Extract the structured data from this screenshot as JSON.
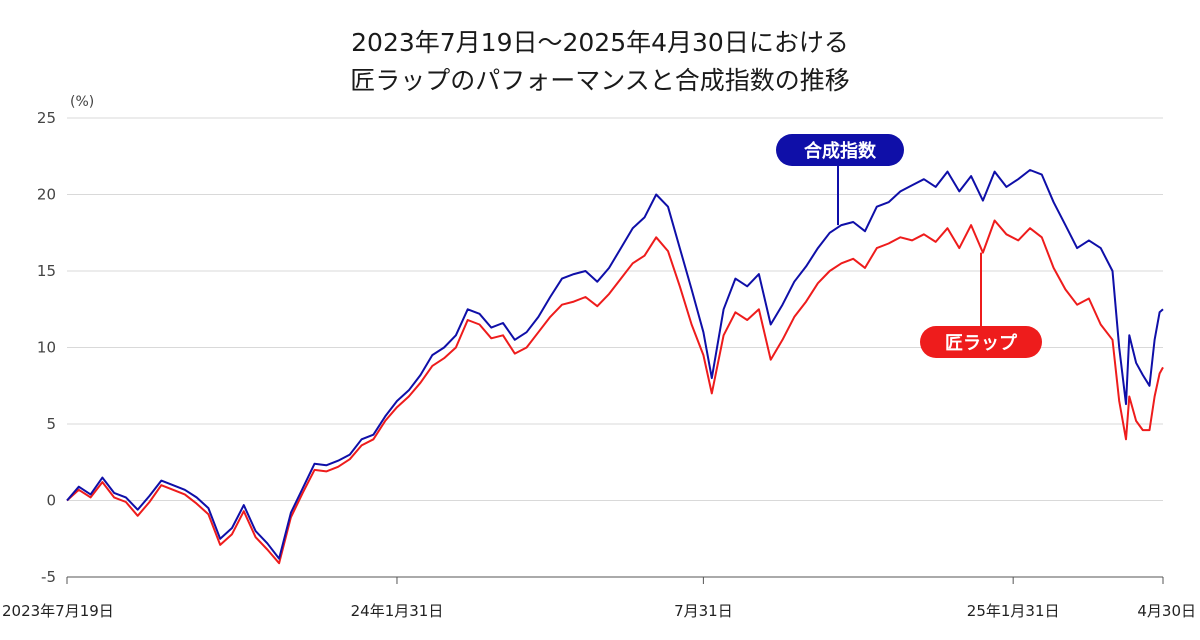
{
  "chart_data": {
    "type": "line",
    "title": [
      "2023年7月19日～2025年4月30日における",
      "匠ラップのパフォーマンスと合成指数の推移"
    ],
    "ylabel": "(%)",
    "ylim": [
      -5,
      25
    ],
    "yticks": [
      25,
      20,
      15,
      10,
      5,
      0,
      -5
    ],
    "grid": true,
    "x_labels": [
      {
        "date": "2023-07-19",
        "label": "2023年7月19日"
      },
      {
        "date": "2024-01-31",
        "label": "24年1月31日"
      },
      {
        "date": "2024-07-31",
        "label": "7月31日"
      },
      {
        "date": "2025-01-31",
        "label": "25年1月31日"
      },
      {
        "date": "2025-04-30",
        "label": "4月30日"
      }
    ],
    "series": [
      {
        "name": "合成指数",
        "color": "#0f0fa8",
        "points": [
          [
            "2023-07-19",
            0.0
          ],
          [
            "2023-07-26",
            0.9
          ],
          [
            "2023-08-02",
            0.4
          ],
          [
            "2023-08-09",
            1.5
          ],
          [
            "2023-08-16",
            0.5
          ],
          [
            "2023-08-23",
            0.2
          ],
          [
            "2023-08-30",
            -0.6
          ],
          [
            "2023-09-06",
            0.3
          ],
          [
            "2023-09-13",
            1.3
          ],
          [
            "2023-09-20",
            1.0
          ],
          [
            "2023-09-27",
            0.7
          ],
          [
            "2023-10-04",
            0.2
          ],
          [
            "2023-10-11",
            -0.5
          ],
          [
            "2023-10-18",
            -2.5
          ],
          [
            "2023-10-25",
            -1.8
          ],
          [
            "2023-11-01",
            -0.3
          ],
          [
            "2023-11-08",
            -2.0
          ],
          [
            "2023-11-15",
            -2.8
          ],
          [
            "2023-11-22",
            -3.8
          ],
          [
            "2023-11-29",
            -0.8
          ],
          [
            "2023-12-06",
            0.8
          ],
          [
            "2023-12-13",
            2.4
          ],
          [
            "2023-12-20",
            2.3
          ],
          [
            "2023-12-27",
            2.6
          ],
          [
            "2024-01-03",
            3.0
          ],
          [
            "2024-01-10",
            4.0
          ],
          [
            "2024-01-17",
            4.3
          ],
          [
            "2024-01-24",
            5.5
          ],
          [
            "2024-01-31",
            6.5
          ],
          [
            "2024-02-07",
            7.2
          ],
          [
            "2024-02-14",
            8.2
          ],
          [
            "2024-02-21",
            9.5
          ],
          [
            "2024-02-28",
            10.0
          ],
          [
            "2024-03-06",
            10.8
          ],
          [
            "2024-03-13",
            12.5
          ],
          [
            "2024-03-20",
            12.2
          ],
          [
            "2024-03-27",
            11.3
          ],
          [
            "2024-04-03",
            11.6
          ],
          [
            "2024-04-10",
            10.5
          ],
          [
            "2024-04-17",
            11.0
          ],
          [
            "2024-04-24",
            12.0
          ],
          [
            "2024-05-01",
            13.3
          ],
          [
            "2024-05-08",
            14.5
          ],
          [
            "2024-05-15",
            14.8
          ],
          [
            "2024-05-22",
            15.0
          ],
          [
            "2024-05-29",
            14.3
          ],
          [
            "2024-06-05",
            15.2
          ],
          [
            "2024-06-12",
            16.5
          ],
          [
            "2024-06-19",
            17.8
          ],
          [
            "2024-06-26",
            18.5
          ],
          [
            "2024-07-03",
            20.0
          ],
          [
            "2024-07-10",
            19.2
          ],
          [
            "2024-07-17",
            16.5
          ],
          [
            "2024-07-24",
            13.8
          ],
          [
            "2024-07-31",
            11.0
          ],
          [
            "2024-08-05",
            8.0
          ],
          [
            "2024-08-12",
            12.5
          ],
          [
            "2024-08-19",
            14.5
          ],
          [
            "2024-08-26",
            14.0
          ],
          [
            "2024-09-02",
            14.8
          ],
          [
            "2024-09-09",
            11.5
          ],
          [
            "2024-09-16",
            12.8
          ],
          [
            "2024-09-23",
            14.3
          ],
          [
            "2024-09-30",
            15.3
          ],
          [
            "2024-10-07",
            16.5
          ],
          [
            "2024-10-14",
            17.5
          ],
          [
            "2024-10-21",
            18.0
          ],
          [
            "2024-10-28",
            18.2
          ],
          [
            "2024-11-04",
            17.6
          ],
          [
            "2024-11-11",
            19.2
          ],
          [
            "2024-11-18",
            19.5
          ],
          [
            "2024-11-25",
            20.2
          ],
          [
            "2024-12-02",
            20.6
          ],
          [
            "2024-12-09",
            21.0
          ],
          [
            "2024-12-16",
            20.5
          ],
          [
            "2024-12-23",
            21.5
          ],
          [
            "2024-12-30",
            20.2
          ],
          [
            "2025-01-06",
            21.2
          ],
          [
            "2025-01-13",
            19.6
          ],
          [
            "2025-01-20",
            21.5
          ],
          [
            "2025-01-27",
            20.5
          ],
          [
            "2025-02-03",
            21.0
          ],
          [
            "2025-02-10",
            21.6
          ],
          [
            "2025-02-17",
            21.3
          ],
          [
            "2025-02-24",
            19.5
          ],
          [
            "2025-03-03",
            18.0
          ],
          [
            "2025-03-10",
            16.5
          ],
          [
            "2025-03-17",
            17.0
          ],
          [
            "2025-03-24",
            16.5
          ],
          [
            "2025-03-31",
            15.0
          ],
          [
            "2025-04-04",
            10.0
          ],
          [
            "2025-04-08",
            6.3
          ],
          [
            "2025-04-10",
            10.8
          ],
          [
            "2025-04-14",
            9.0
          ],
          [
            "2025-04-18",
            8.2
          ],
          [
            "2025-04-22",
            7.5
          ],
          [
            "2025-04-25",
            10.5
          ],
          [
            "2025-04-28",
            12.3
          ],
          [
            "2025-04-30",
            12.5
          ]
        ]
      },
      {
        "name": "匠ラップ",
        "color": "#ee1c1c",
        "points": [
          [
            "2023-07-19",
            0.0
          ],
          [
            "2023-07-26",
            0.7
          ],
          [
            "2023-08-02",
            0.2
          ],
          [
            "2023-08-09",
            1.2
          ],
          [
            "2023-08-16",
            0.2
          ],
          [
            "2023-08-23",
            -0.1
          ],
          [
            "2023-08-30",
            -1.0
          ],
          [
            "2023-09-06",
            -0.1
          ],
          [
            "2023-09-13",
            1.0
          ],
          [
            "2023-09-20",
            0.7
          ],
          [
            "2023-09-27",
            0.4
          ],
          [
            "2023-10-04",
            -0.2
          ],
          [
            "2023-10-11",
            -0.9
          ],
          [
            "2023-10-18",
            -2.9
          ],
          [
            "2023-10-25",
            -2.2
          ],
          [
            "2023-11-01",
            -0.7
          ],
          [
            "2023-11-08",
            -2.4
          ],
          [
            "2023-11-15",
            -3.2
          ],
          [
            "2023-11-22",
            -4.1
          ],
          [
            "2023-11-29",
            -1.1
          ],
          [
            "2023-12-06",
            0.5
          ],
          [
            "2023-12-13",
            2.0
          ],
          [
            "2023-12-20",
            1.9
          ],
          [
            "2023-12-27",
            2.2
          ],
          [
            "2024-01-03",
            2.7
          ],
          [
            "2024-01-10",
            3.6
          ],
          [
            "2024-01-17",
            4.0
          ],
          [
            "2024-01-24",
            5.2
          ],
          [
            "2024-01-31",
            6.1
          ],
          [
            "2024-02-07",
            6.8
          ],
          [
            "2024-02-14",
            7.7
          ],
          [
            "2024-02-21",
            8.8
          ],
          [
            "2024-02-28",
            9.3
          ],
          [
            "2024-03-06",
            10.0
          ],
          [
            "2024-03-13",
            11.8
          ],
          [
            "2024-03-20",
            11.5
          ],
          [
            "2024-03-27",
            10.6
          ],
          [
            "2024-04-03",
            10.8
          ],
          [
            "2024-04-10",
            9.6
          ],
          [
            "2024-04-17",
            10.0
          ],
          [
            "2024-04-24",
            11.0
          ],
          [
            "2024-05-01",
            12.0
          ],
          [
            "2024-05-08",
            12.8
          ],
          [
            "2024-05-15",
            13.0
          ],
          [
            "2024-05-22",
            13.3
          ],
          [
            "2024-05-29",
            12.7
          ],
          [
            "2024-06-05",
            13.5
          ],
          [
            "2024-06-12",
            14.5
          ],
          [
            "2024-06-19",
            15.5
          ],
          [
            "2024-06-26",
            16.0
          ],
          [
            "2024-07-03",
            17.2
          ],
          [
            "2024-07-10",
            16.3
          ],
          [
            "2024-07-17",
            14.0
          ],
          [
            "2024-07-24",
            11.5
          ],
          [
            "2024-07-31",
            9.5
          ],
          [
            "2024-08-05",
            7.0
          ],
          [
            "2024-08-12",
            10.8
          ],
          [
            "2024-08-19",
            12.3
          ],
          [
            "2024-08-26",
            11.8
          ],
          [
            "2024-09-02",
            12.5
          ],
          [
            "2024-09-09",
            9.2
          ],
          [
            "2024-09-16",
            10.5
          ],
          [
            "2024-09-23",
            12.0
          ],
          [
            "2024-09-30",
            13.0
          ],
          [
            "2024-10-07",
            14.2
          ],
          [
            "2024-10-14",
            15.0
          ],
          [
            "2024-10-21",
            15.5
          ],
          [
            "2024-10-28",
            15.8
          ],
          [
            "2024-11-04",
            15.2
          ],
          [
            "2024-11-11",
            16.5
          ],
          [
            "2024-11-18",
            16.8
          ],
          [
            "2024-11-25",
            17.2
          ],
          [
            "2024-12-02",
            17.0
          ],
          [
            "2024-12-09",
            17.4
          ],
          [
            "2024-12-16",
            16.9
          ],
          [
            "2024-12-23",
            17.8
          ],
          [
            "2024-12-30",
            16.5
          ],
          [
            "2025-01-06",
            18.0
          ],
          [
            "2025-01-13",
            16.2
          ],
          [
            "2025-01-20",
            18.3
          ],
          [
            "2025-01-27",
            17.4
          ],
          [
            "2025-02-03",
            17.0
          ],
          [
            "2025-02-10",
            17.8
          ],
          [
            "2025-02-17",
            17.2
          ],
          [
            "2025-02-24",
            15.2
          ],
          [
            "2025-03-03",
            13.8
          ],
          [
            "2025-03-10",
            12.8
          ],
          [
            "2025-03-17",
            13.2
          ],
          [
            "2025-03-24",
            11.5
          ],
          [
            "2025-03-31",
            10.5
          ],
          [
            "2025-04-04",
            6.5
          ],
          [
            "2025-04-08",
            4.0
          ],
          [
            "2025-04-10",
            6.8
          ],
          [
            "2025-04-14",
            5.2
          ],
          [
            "2025-04-18",
            4.6
          ],
          [
            "2025-04-22",
            4.6
          ],
          [
            "2025-04-25",
            6.8
          ],
          [
            "2025-04-28",
            8.3
          ],
          [
            "2025-04-30",
            8.7
          ]
        ]
      }
    ],
    "annotations": [
      {
        "text": "合成指数",
        "color": "#0f0fa8",
        "series": "合成指数"
      },
      {
        "text": "匠ラップ",
        "color": "#ee1c1c",
        "series": "匠ラップ"
      }
    ]
  }
}
